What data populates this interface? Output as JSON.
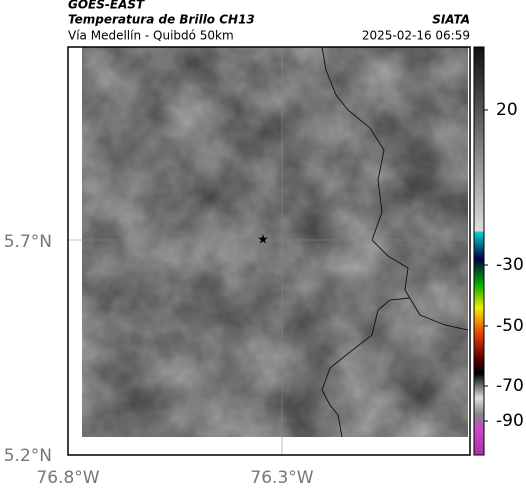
{
  "header": {
    "source": "GOES-EAST",
    "product": "Temperatura de Brillo CH13",
    "route": "Vía Medellín - Quibdó 50km",
    "agency": "SIATA",
    "datetime": "2025-02-16 06:59"
  },
  "axes": {
    "lat_labels": [
      "5.7°N",
      "5.2°N"
    ],
    "lon_labels": [
      "76.8°W",
      "76.3°W"
    ]
  },
  "colorbar": {
    "ticks": [
      20,
      -30,
      -50,
      -70,
      -90
    ]
  }
}
